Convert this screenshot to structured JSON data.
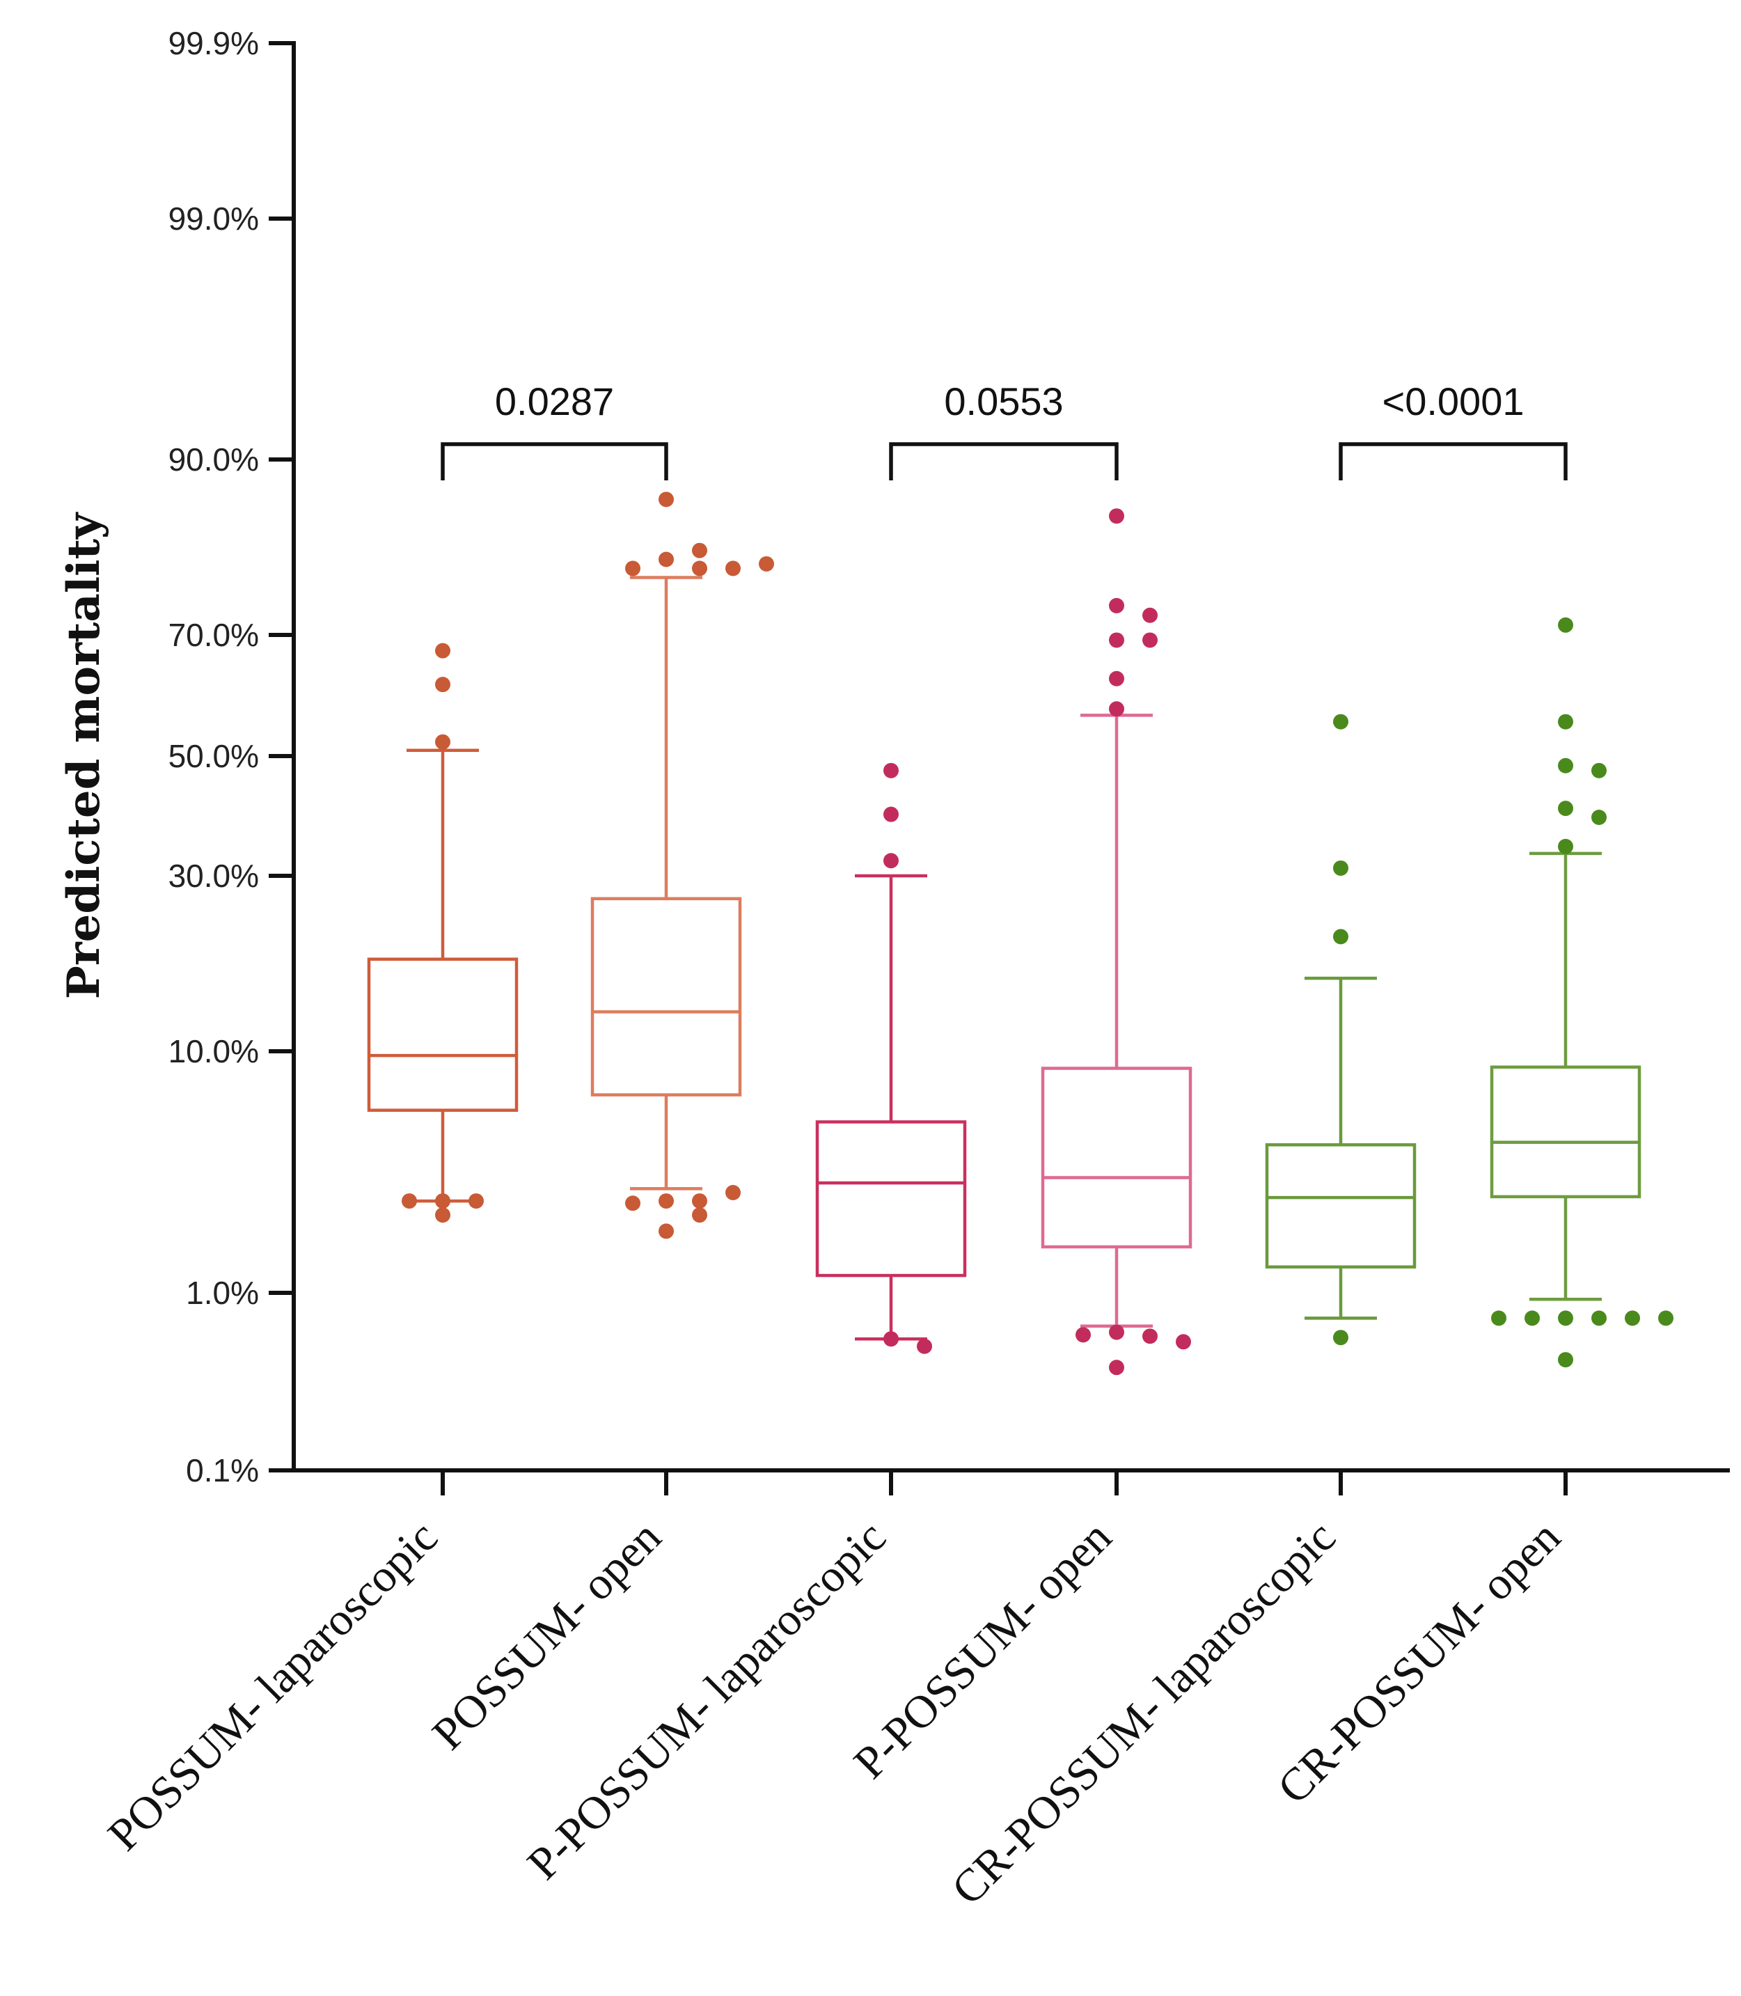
{
  "chart_data": {
    "type": "box",
    "ylabel": "Predicted mortality",
    "yscale": "logit",
    "ylim": [
      0.1,
      99.9
    ],
    "y_ticks": [
      {
        "value": 99.9,
        "label": "99.9%"
      },
      {
        "value": 99.0,
        "label": "99.0%"
      },
      {
        "value": 90.0,
        "label": "90.0%"
      },
      {
        "value": 70.0,
        "label": "70.0%"
      },
      {
        "value": 50.0,
        "label": "50.0%"
      },
      {
        "value": 30.0,
        "label": "30.0%"
      },
      {
        "value": 10.0,
        "label": "10.0%"
      },
      {
        "value": 1.0,
        "label": "1.0%"
      },
      {
        "value": 0.1,
        "label": "0.1%"
      }
    ],
    "categories": [
      "POSSUM- laparoscopic",
      "POSSUM- open",
      "P-POSSUM- laparoscopic",
      "P-POSSUM- open",
      "CR-POSSUM- laparoscopic",
      "CR-POSSUM- open"
    ],
    "boxes": [
      {
        "category": "POSSUM- laparoscopic",
        "color": "#cf5c3a",
        "whisker_low": 2.4,
        "q1": 5.7,
        "median": 9.6,
        "q3": 17.8,
        "whisker_high": 50.8,
        "outliers": [
          67.0,
          61.0,
          52.0,
          2.4,
          2.4,
          2.4,
          2.1
        ]
      },
      {
        "category": "POSSUM- open",
        "color": "#dc7d5e",
        "whisker_low": 2.7,
        "q1": 6.6,
        "median": 12.8,
        "q3": 26.0,
        "whisker_high": 76.0,
        "outliers": [
          85.0,
          78.0,
          77.0,
          77.0,
          77.0,
          79.0,
          77.5,
          2.4,
          2.4,
          2.35,
          2.1,
          1.8,
          2.6
        ]
      },
      {
        "category": "P-POSSUM- laparoscopic",
        "color": "#c9305e",
        "whisker_low": 0.55,
        "q1": 1.18,
        "median": 2.85,
        "q3": 5.1,
        "whisker_high": 30.0,
        "outliers": [
          47.0,
          39.0,
          32.0,
          0.55,
          0.5
        ]
      },
      {
        "category": "P-POSSUM- open",
        "color": "#de6a93",
        "whisker_low": 0.65,
        "q1": 1.55,
        "median": 3.0,
        "q3": 8.5,
        "whisker_high": 56.0,
        "outliers": [
          83.0,
          73.0,
          72.0,
          69.0,
          69.0,
          62.0,
          57.0,
          0.6,
          0.57,
          0.58,
          0.53,
          0.38
        ]
      },
      {
        "category": "CR-POSSUM- laparoscopic",
        "color": "#6a9a3c",
        "whisker_low": 0.72,
        "q1": 1.28,
        "median": 2.48,
        "q3": 4.1,
        "whisker_high": 15.8,
        "outliers": [
          55.0,
          31.0,
          20.5,
          0.56
        ]
      },
      {
        "category": "CR-POSSUM- open",
        "color": "#6e9c40",
        "whisker_low": 0.92,
        "q1": 2.5,
        "median": 4.2,
        "q3": 8.6,
        "whisker_high": 33.0,
        "outliers": [
          71.0,
          55.0,
          48.0,
          47.0,
          40.0,
          38.5,
          34.0,
          0.72,
          0.72,
          0.72,
          0.72,
          0.72,
          0.72,
          0.42
        ]
      }
    ],
    "outlier_color": {
      "POSSUM": "#c85a36",
      "P-POSSUM": "#c22c5c",
      "CR-POSSUM": "#4a8a1c"
    },
    "comparisons": [
      {
        "from": "POSSUM- laparoscopic",
        "to": "POSSUM- open",
        "label": "0.0287"
      },
      {
        "from": "P-POSSUM- laparoscopic",
        "to": "P-POSSUM- open",
        "label": "0.0553"
      },
      {
        "from": "CR-POSSUM- laparoscopic",
        "to": "CR-POSSUM- open",
        "label": "<0.0001"
      }
    ],
    "grid": false,
    "legend": "none"
  }
}
